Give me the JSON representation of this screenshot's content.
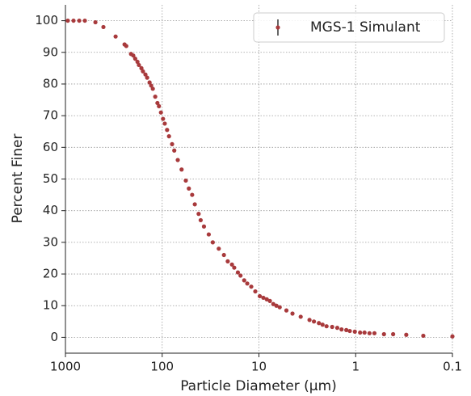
{
  "chart_data": {
    "type": "scatter",
    "x_label": "Particle Diameter (µm)",
    "y_label": "Percent Finer",
    "x": [
      945,
      825,
      720,
      630,
      490,
      405,
      303,
      245,
      235,
      210,
      199,
      190,
      180,
      174,
      164,
      158,
      149,
      143,
      135,
      130,
      125,
      118,
      112,
      108,
      103,
      98,
      94,
      89,
      85,
      79,
      75,
      69,
      63,
      57,
      53,
      49,
      46,
      42,
      40,
      37,
      33,
      30,
      26,
      23,
      21,
      19,
      18,
      16.5,
      15.5,
      14.2,
      13.2,
      12,
      10.9,
      9.8,
      9.0,
      8.3,
      7.7,
      7.1,
      6.6,
      6.1,
      5.2,
      4.5,
      3.7,
      3.0,
      2.7,
      2.4,
      2.2,
      2.0,
      1.75,
      1.55,
      1.4,
      1.25,
      1.15,
      1.02,
      0.9,
      0.81,
      0.72,
      0.64,
      0.51,
      0.41,
      0.3,
      0.2,
      0.1
    ],
    "series": [
      {
        "name": "MGS-1 Simulant",
        "color": "#a83a3c",
        "values": [
          100,
          100,
          100,
          100,
          99.5,
          98,
          95,
          92.5,
          92,
          89.5,
          89,
          88,
          87,
          86,
          85,
          84,
          83,
          82,
          80.5,
          79.5,
          78.5,
          76,
          74,
          73,
          71,
          69,
          67.5,
          65.5,
          63.5,
          61,
          59,
          56,
          53,
          49.5,
          47,
          45,
          42,
          39,
          37,
          35,
          32.5,
          30,
          28,
          26,
          24,
          23,
          22,
          20.5,
          19.5,
          18,
          17,
          16,
          14.5,
          13,
          12.5,
          12,
          11.5,
          10.5,
          10,
          9.5,
          8.5,
          7.5,
          6.5,
          5.5,
          5,
          4.5,
          4,
          3.5,
          3.3,
          3,
          2.5,
          2.3,
          2,
          1.8,
          1.5,
          1.5,
          1.3,
          1.3,
          1,
          1,
          0.8,
          0.5,
          0.3
        ]
      }
    ],
    "xlim": [
      1000,
      0.1
    ],
    "xticks": [
      1000,
      100,
      10,
      1,
      0.1
    ],
    "xscale": "log",
    "ylim": [
      -5,
      105
    ],
    "yticks": [
      0,
      10,
      20,
      30,
      40,
      50,
      60,
      70,
      80,
      90,
      100
    ],
    "grid": true,
    "legend": "upper right"
  }
}
